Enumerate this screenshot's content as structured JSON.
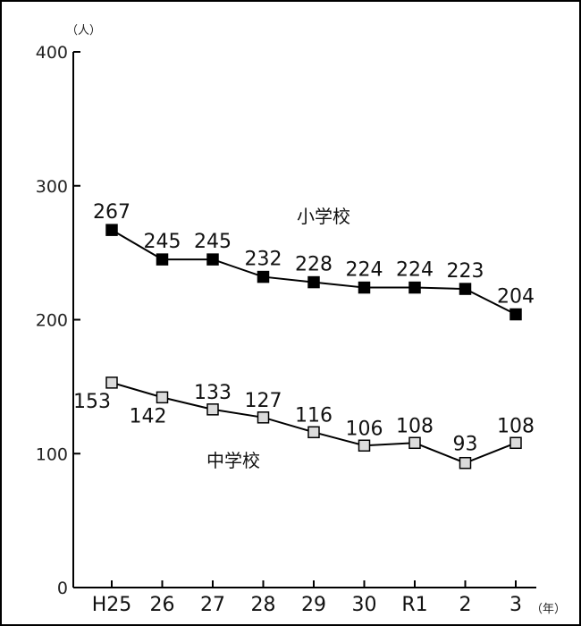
{
  "chart_data": {
    "type": "line",
    "categories": [
      "H25",
      "26",
      "27",
      "28",
      "29",
      "30",
      "R1",
      "2",
      "3"
    ],
    "ylim": [
      0,
      400
    ],
    "yticks": [
      0,
      100,
      200,
      300,
      400
    ],
    "ylabel": "（人）",
    "xlabel": "（年）",
    "grid": false,
    "series": [
      {
        "name": "小学校",
        "marker": "filled-square",
        "color": "#000000",
        "values": [
          267,
          245,
          245,
          232,
          228,
          224,
          224,
          223,
          204
        ],
        "labels": [
          "267",
          "245",
          "245",
          "232",
          "228",
          "224",
          "224",
          "223",
          "204"
        ]
      },
      {
        "name": "中学校",
        "marker": "hollow-square",
        "color": "#dcdcdc",
        "values": [
          153,
          142,
          133,
          127,
          116,
          106,
          108,
          93,
          108
        ],
        "labels": [
          "153",
          "142",
          "133",
          "127",
          "116",
          "106",
          "108",
          "93",
          "108"
        ]
      }
    ]
  }
}
